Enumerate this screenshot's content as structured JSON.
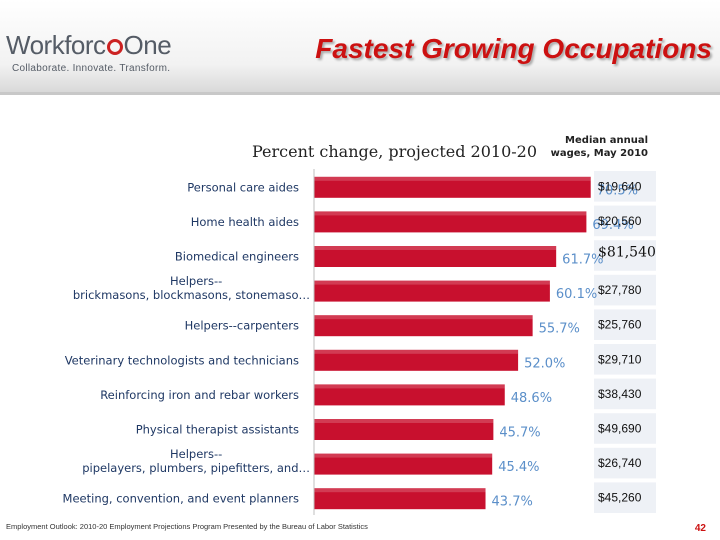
{
  "logo": {
    "name_part1": "Workforc",
    "name_part2": "One",
    "tagline": "Collaborate.  Innovate.  Transform."
  },
  "title": "Fastest Growing Occupations",
  "subtitle": "Percent change, projected 2010-20",
  "wages_header": "Median annual wages, May 2010",
  "footer": "Employment Outlook: 2010-20 Employment Projections Program Presented by the Bureau of Labor Statistics",
  "page_number": "42",
  "colors": {
    "bar": "#c8102e",
    "value_label": "#5b8fc9",
    "title": "#cc1111",
    "wage_stripe": "#eef1f6"
  },
  "chart_data": {
    "type": "bar",
    "orientation": "horizontal",
    "title": "Percent change, projected 2010-20",
    "categories": [
      [
        "Personal care aides"
      ],
      [
        "Home health aides"
      ],
      [
        "Biomedical engineers"
      ],
      [
        "Helpers--",
        "brickmasons, blockmasons, stonemaso…"
      ],
      [
        "Helpers--carpenters"
      ],
      [
        "Veterinary technologists and technicians"
      ],
      [
        "Reinforcing iron and rebar workers"
      ],
      [
        "Physical therapist assistants"
      ],
      [
        "Helpers--",
        "pipelayers, plumbers, pipefitters, and…"
      ],
      [
        "Meeting, convention, and event planners"
      ]
    ],
    "values": [
      70.5,
      69.4,
      61.7,
      60.1,
      55.7,
      52.0,
      48.6,
      45.7,
      45.4,
      43.7
    ],
    "value_labels": [
      "70.5%",
      "69.4%",
      "61.7%",
      "60.1%",
      "55.7%",
      "52.0%",
      "48.6%",
      "45.7%",
      "45.4%",
      "43.7%"
    ],
    "wages": [
      "$19,640",
      "$20,560",
      "$81,540",
      "$27,780",
      "$25,760",
      "$29,710",
      "$38,430",
      "$49,690",
      "$26,740",
      "$45,260"
    ],
    "highlight_index": 2,
    "xlim": [
      0,
      80
    ],
    "grid": false,
    "legend": "none"
  }
}
